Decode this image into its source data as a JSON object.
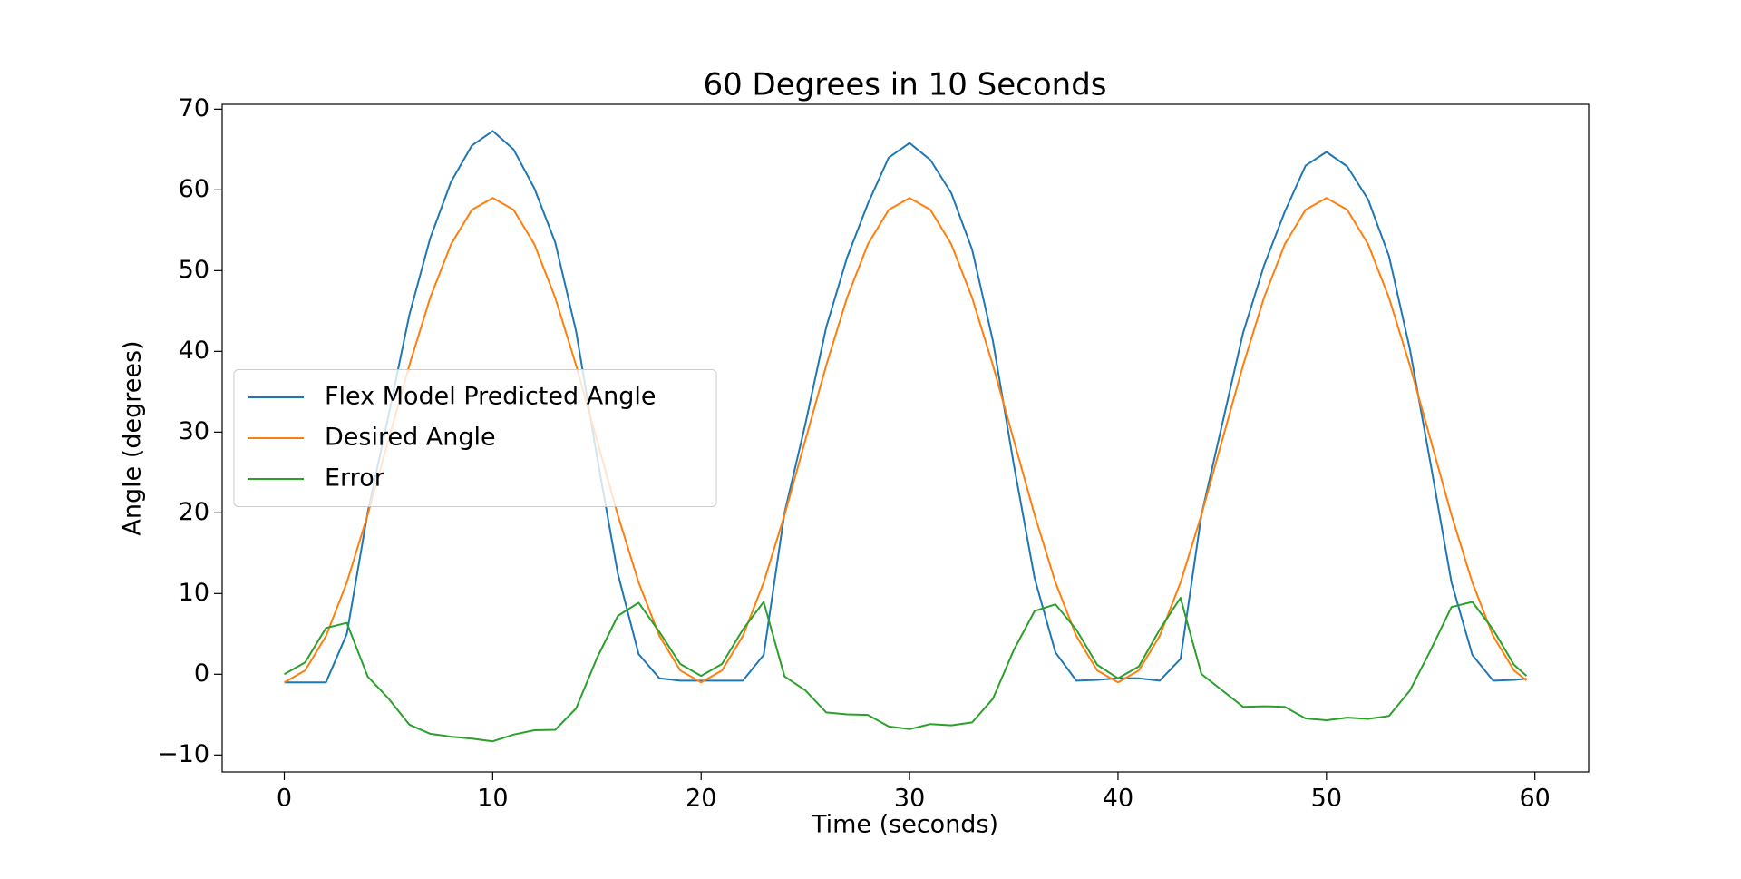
{
  "chart_data": {
    "type": "line",
    "title": "60 Degrees in 10 Seconds",
    "x_label": "Time (seconds)",
    "y_label": "Angle (degrees)",
    "x": [
      0,
      1,
      2,
      3,
      4,
      5,
      6,
      7,
      8,
      9,
      10,
      11,
      12,
      13,
      14,
      15,
      16,
      17,
      18,
      19,
      20,
      21,
      22,
      23,
      24,
      25,
      26,
      27,
      28,
      29,
      30,
      31,
      32,
      33,
      34,
      35,
      36,
      37,
      38,
      39,
      40,
      41,
      42,
      43,
      44,
      45,
      46,
      47,
      48,
      49,
      50,
      51,
      52,
      53,
      54,
      55,
      56,
      57,
      58,
      59,
      59.6
    ],
    "series": [
      {
        "name": "Flex Model Predicted Angle",
        "color": "#1f77b4",
        "values": [
          -1,
          -1,
          -1,
          5,
          20,
          32,
          44.5,
          54,
          61,
          65.5,
          67.3,
          65,
          60.2,
          53.5,
          42.5,
          27,
          12.5,
          2.5,
          -0.5,
          -0.8,
          -0.8,
          -0.8,
          -0.8,
          2.4,
          20,
          31,
          43,
          51.6,
          58.3,
          64,
          65.8,
          63.7,
          59.6,
          52.6,
          41.3,
          26,
          11.9,
          2.7,
          -0.8,
          -0.7,
          -0.5,
          -0.5,
          -0.8,
          1.9,
          19.7,
          31,
          42.3,
          50.6,
          57.3,
          63,
          64.7,
          62.9,
          58.8,
          51.8,
          40.3,
          26,
          11.4,
          2.4,
          -0.8,
          -0.7,
          -0.56
        ]
      },
      {
        "name": "Desired Angle",
        "color": "#ff7f0e",
        "values": [
          -1,
          0.47,
          4.73,
          11.37,
          19.73,
          29,
          38.27,
          46.63,
          53.27,
          57.53,
          59,
          57.53,
          53.27,
          46.63,
          38.27,
          29,
          19.73,
          11.37,
          4.73,
          0.47,
          -1,
          0.47,
          4.73,
          11.37,
          19.73,
          29,
          38.27,
          46.63,
          53.27,
          57.53,
          59,
          57.53,
          53.27,
          46.63,
          38.27,
          29,
          19.73,
          11.37,
          4.73,
          0.47,
          -1,
          0.47,
          4.73,
          11.37,
          19.73,
          29,
          38.27,
          46.63,
          53.27,
          57.53,
          59,
          57.53,
          53.27,
          46.63,
          38.27,
          29,
          19.73,
          11.37,
          4.73,
          0.47,
          -0.76
        ]
      },
      {
        "name": "Error",
        "color": "#2ca02c",
        "values": [
          0,
          1.47,
          5.73,
          6.37,
          -0.27,
          -3,
          -6.23,
          -7.37,
          -7.73,
          -7.97,
          -8.3,
          -7.47,
          -6.93,
          -6.87,
          -4.23,
          2,
          7.23,
          8.87,
          5.23,
          1.27,
          -0.2,
          1.27,
          5.53,
          8.97,
          -0.27,
          -2,
          -4.73,
          -4.97,
          -5.03,
          -6.47,
          -6.8,
          -6.17,
          -6.33,
          -5.97,
          -3.03,
          3,
          7.83,
          8.67,
          5.53,
          1.17,
          -0.5,
          0.97,
          5.53,
          9.47,
          0.03,
          -2,
          -4.03,
          -3.97,
          -4.03,
          -5.47,
          -5.7,
          -5.37,
          -5.53,
          -5.17,
          -2.03,
          3,
          8.33,
          8.97,
          5.53,
          1.17,
          -0.2
        ]
      }
    ],
    "xlim": [
      -2.98,
      62.58
    ],
    "ylim": [
      -12.1,
      70.6
    ],
    "xticks": [
      0,
      10,
      20,
      30,
      40,
      50,
      60
    ],
    "yticks": [
      {
        "value": -10,
        "label": "−10"
      },
      0,
      10,
      20,
      30,
      40,
      50,
      60,
      70
    ],
    "legend": "center left"
  }
}
